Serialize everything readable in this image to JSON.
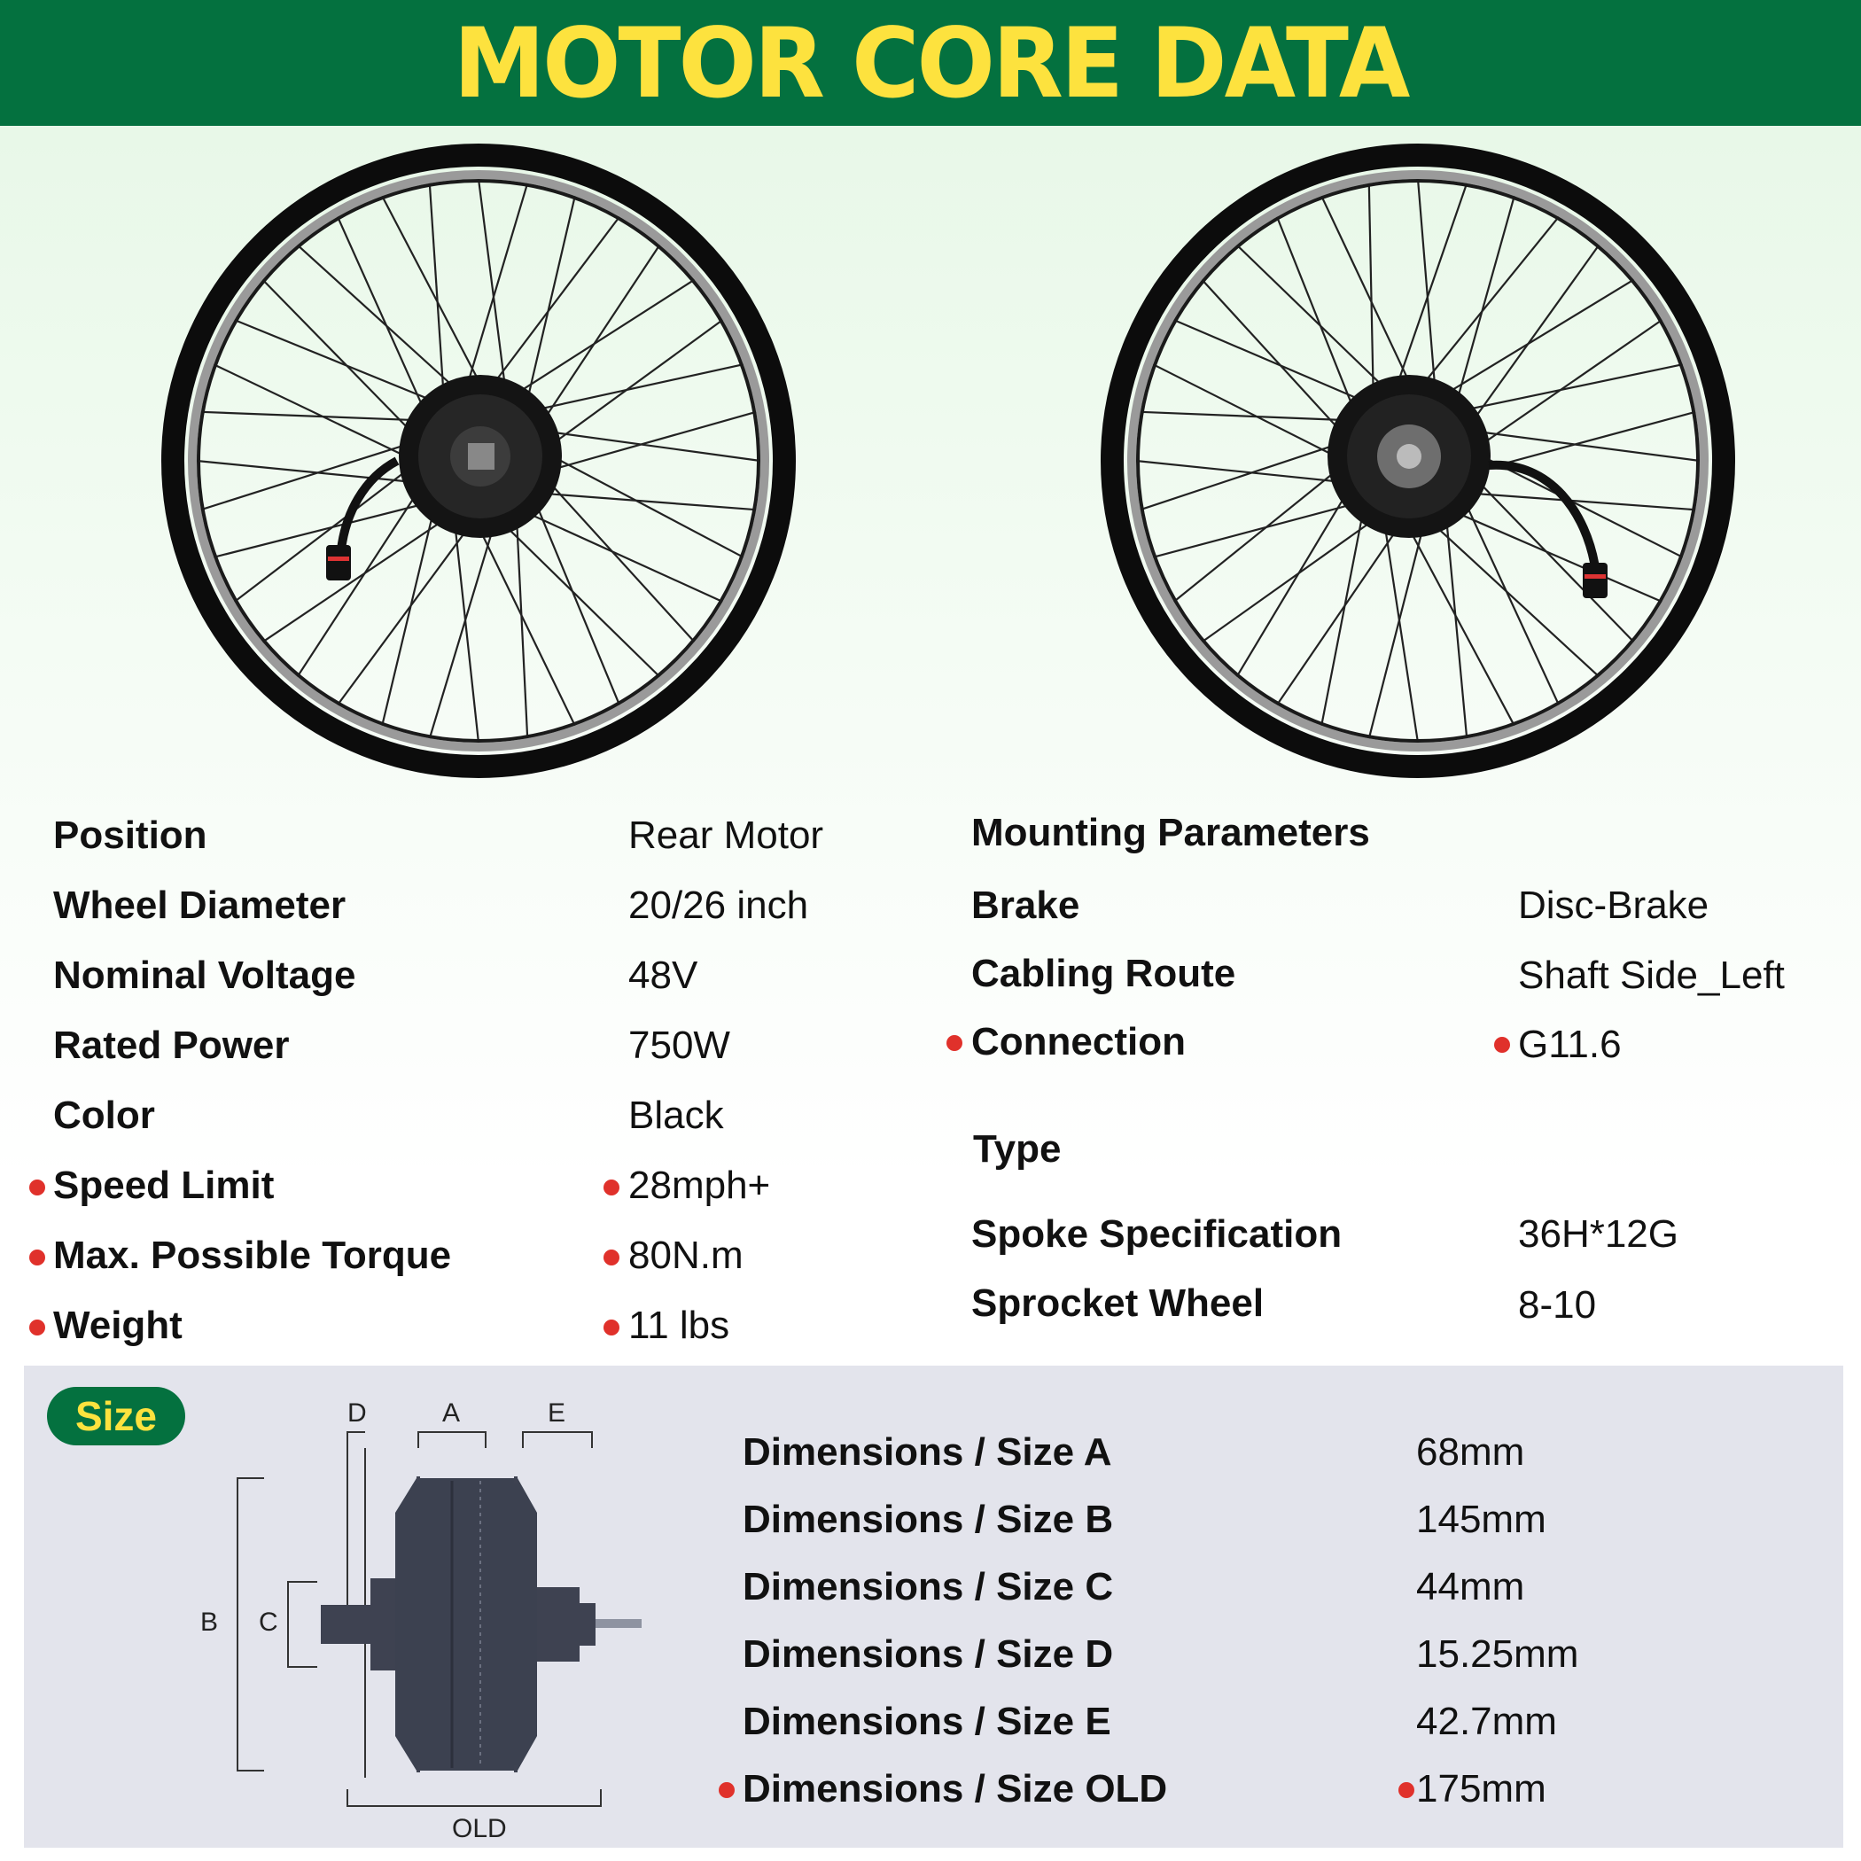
{
  "header": {
    "title": "MOTOR CORE DATA"
  },
  "specs_left": [
    {
      "label": "Position",
      "value": "Rear Motor",
      "highlight": false
    },
    {
      "label": "Wheel Diameter",
      "value": "20/26 inch",
      "highlight": false
    },
    {
      "label": "Nominal Voltage",
      "value": "48V",
      "highlight": false
    },
    {
      "label": "Rated Power",
      "value": "750W",
      "highlight": false
    },
    {
      "label": "Color",
      "value": "Black",
      "highlight": false
    },
    {
      "label": "Speed Limit",
      "value": "28mph+",
      "highlight": true
    },
    {
      "label": "Max. Possible Torque",
      "value": "80N.m",
      "highlight": true
    },
    {
      "label": "Weight",
      "value": "11 lbs",
      "highlight": true
    }
  ],
  "mounting": {
    "title": "Mounting Parameters",
    "items": [
      {
        "label": "Brake",
        "value": "Disc-Brake",
        "highlight": false
      },
      {
        "label": "Cabling Route",
        "value": "Shaft Side_Left",
        "highlight": false
      },
      {
        "label": "Connection",
        "value": "G11.6",
        "highlight": true
      }
    ]
  },
  "type_section": {
    "title": "Type",
    "items": [
      {
        "label": "Spoke Specification",
        "value": "36H*12G"
      },
      {
        "label": "Sprocket Wheel",
        "value": "8-10"
      }
    ]
  },
  "size": {
    "badge": "Size",
    "diagram_labels": {
      "d": "D",
      "a": "A",
      "e": "E",
      "b": "B",
      "c": "C",
      "old": "OLD"
    },
    "items": [
      {
        "label": "Dimensions / Size A",
        "value": "68mm",
        "highlight": false
      },
      {
        "label": "Dimensions / Size B",
        "value": "145mm",
        "highlight": false
      },
      {
        "label": "Dimensions / Size C",
        "value": "44mm",
        "highlight": false
      },
      {
        "label": "Dimensions / Size D",
        "value": "15.25mm",
        "highlight": false
      },
      {
        "label": "Dimensions / Size E",
        "value": "42.7mm",
        "highlight": false
      },
      {
        "label": "Dimensions / Size OLD",
        "value": "175mm",
        "highlight": true
      }
    ]
  },
  "colors": {
    "brand_green": "#04713f",
    "title_yellow": "#fde23e",
    "bullet_red": "#e0312b"
  }
}
